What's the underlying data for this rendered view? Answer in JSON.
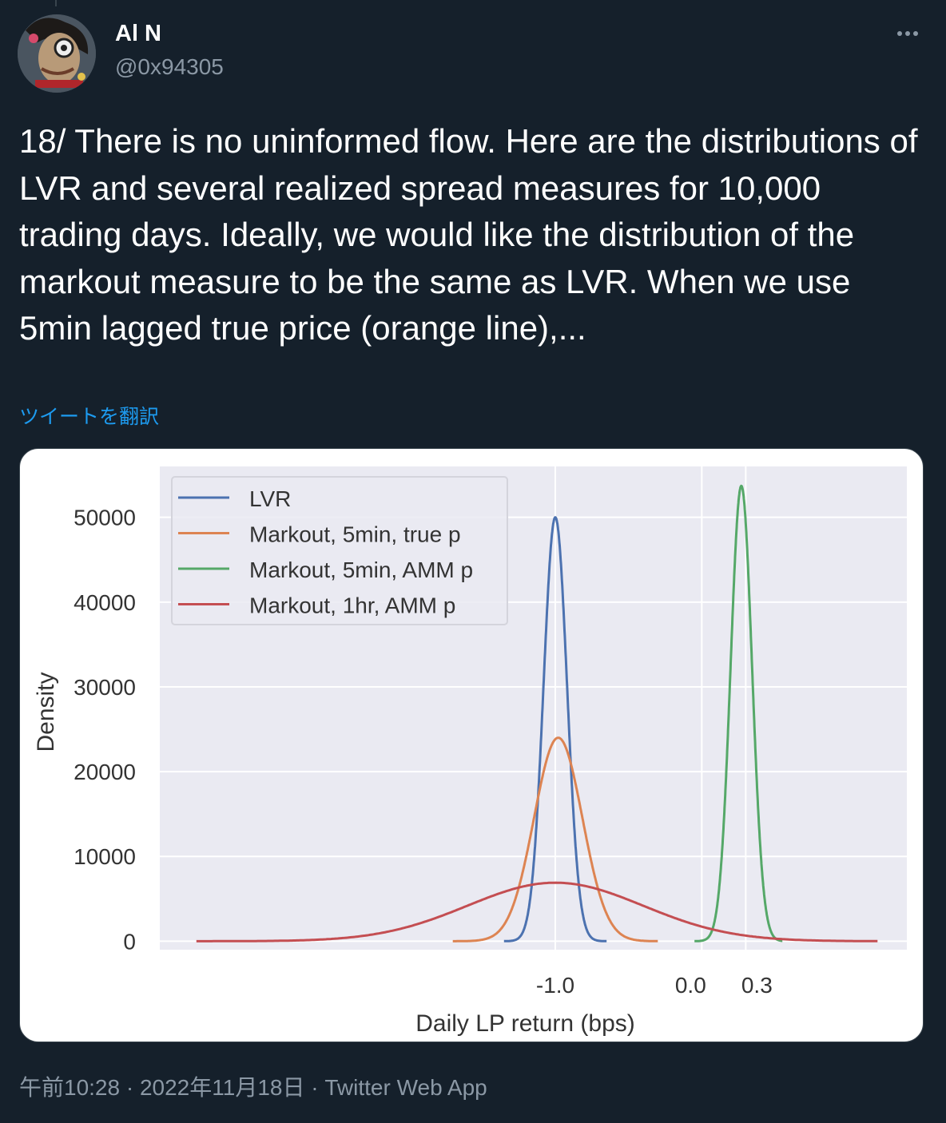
{
  "tweet": {
    "author_name": "Al N",
    "author_handle": "@0x94305",
    "text": "18/ There is no uninformed flow. Here are the distributions of LVR and several realized spread measures for 10,000 trading days. Ideally, we would like the distribution of the markout measure to be the same as LVR. When we use 5min lagged true price (orange line),...",
    "translate_label": "ツイートを翻訳",
    "time": "午前10:28",
    "date": "2022年11月18日",
    "source": "Twitter Web App",
    "separator": " · "
  },
  "icons": {
    "more": "more-horizontal-icon",
    "avatar": "avatar-image"
  },
  "chart_data": {
    "type": "line",
    "xlabel": "Daily LP return (bps)",
    "ylabel": "Density",
    "x_ticks": [
      -1.0,
      0.0,
      0.3
    ],
    "x_tick_labels": [
      "-1.0",
      "0.0",
      "0.3"
    ],
    "y_ticks": [
      0,
      10000,
      20000,
      30000,
      40000,
      50000
    ],
    "y_tick_labels": [
      "0",
      "10000",
      "20000",
      "30000",
      "40000",
      "50000"
    ],
    "xlim": [
      -3.7,
      1.4
    ],
    "ylim": [
      -1000,
      56000
    ],
    "grid": true,
    "legend_position": "top-left",
    "series": [
      {
        "name": "LVR",
        "color": "#4c72b0",
        "distribution": "normal",
        "mean": -1.0,
        "sd": 0.08,
        "peak": 50000,
        "range": [
          -1.35,
          -0.65
        ]
      },
      {
        "name": "Markout, 5min, true p",
        "color": "#dd8452",
        "distribution": "normal",
        "mean": -0.98,
        "sd": 0.165,
        "peak": 24000,
        "range": [
          -1.7,
          -0.3
        ]
      },
      {
        "name": "Markout, 5min, AMM p",
        "color": "#55a868",
        "distribution": "normal",
        "mean": 0.27,
        "sd": 0.073,
        "peak": 53700,
        "range": [
          -0.05,
          0.55
        ]
      },
      {
        "name": "Markout, 1hr, AMM p",
        "color": "#c44e52",
        "distribution": "normal",
        "mean": -1.0,
        "sd": 0.6,
        "peak": 6900,
        "range": [
          -3.45,
          1.2
        ]
      }
    ]
  }
}
